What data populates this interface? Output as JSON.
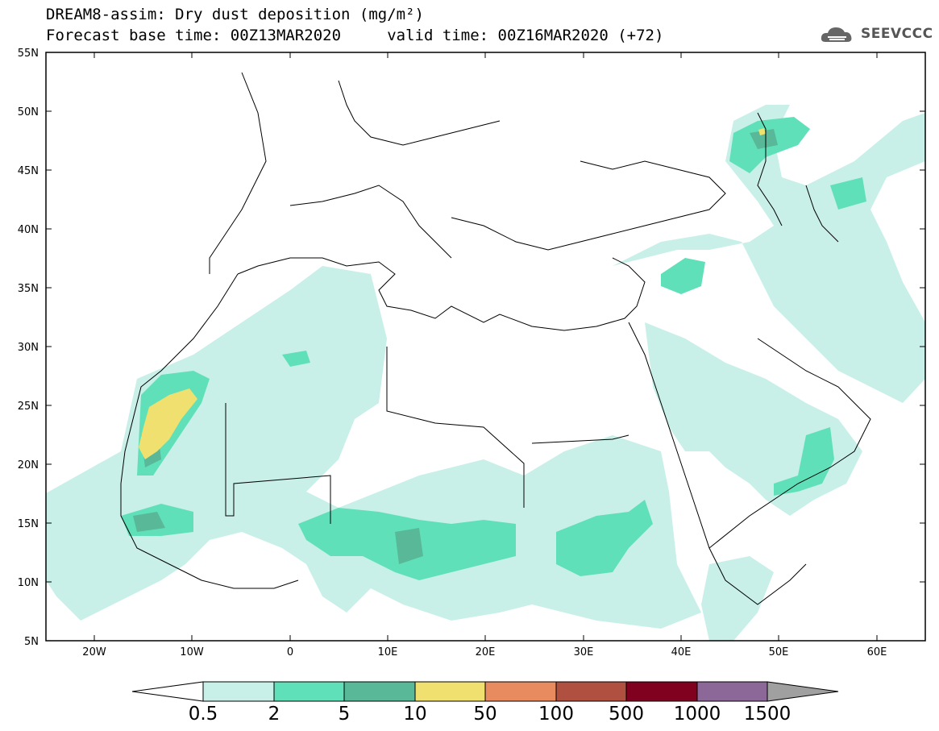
{
  "header": {
    "line1": "DREAM8-assim: Dry dust deposition (mg/m²)",
    "line2": "Forecast base time: 00Z13MAR2020     valid time: 00Z16MAR2020 (+72)"
  },
  "logo": {
    "text": "SEEVCCC",
    "icon": "cloud-logo-icon"
  },
  "map": {
    "lat_labels": [
      "55N",
      "50N",
      "45N",
      "40N",
      "35N",
      "30N",
      "25N",
      "20N",
      "15N",
      "10N",
      "5N"
    ],
    "lon_labels": [
      "20W",
      "10W",
      "0",
      "10E",
      "20E",
      "30E",
      "40E",
      "50E",
      "60E"
    ],
    "lat_range": [
      5,
      55
    ],
    "lon_range": [
      -25,
      65
    ]
  },
  "legend": {
    "labels": [
      "0.5",
      "2",
      "5",
      "10",
      "50",
      "100",
      "500",
      "1000",
      "1500"
    ],
    "colors": [
      "#c8f0e8",
      "#60e0b8",
      "#58b898",
      "#f0e070",
      "#e88c60",
      "#b05040",
      "#800020",
      "#8c6898",
      "#a0a0a0"
    ]
  }
}
